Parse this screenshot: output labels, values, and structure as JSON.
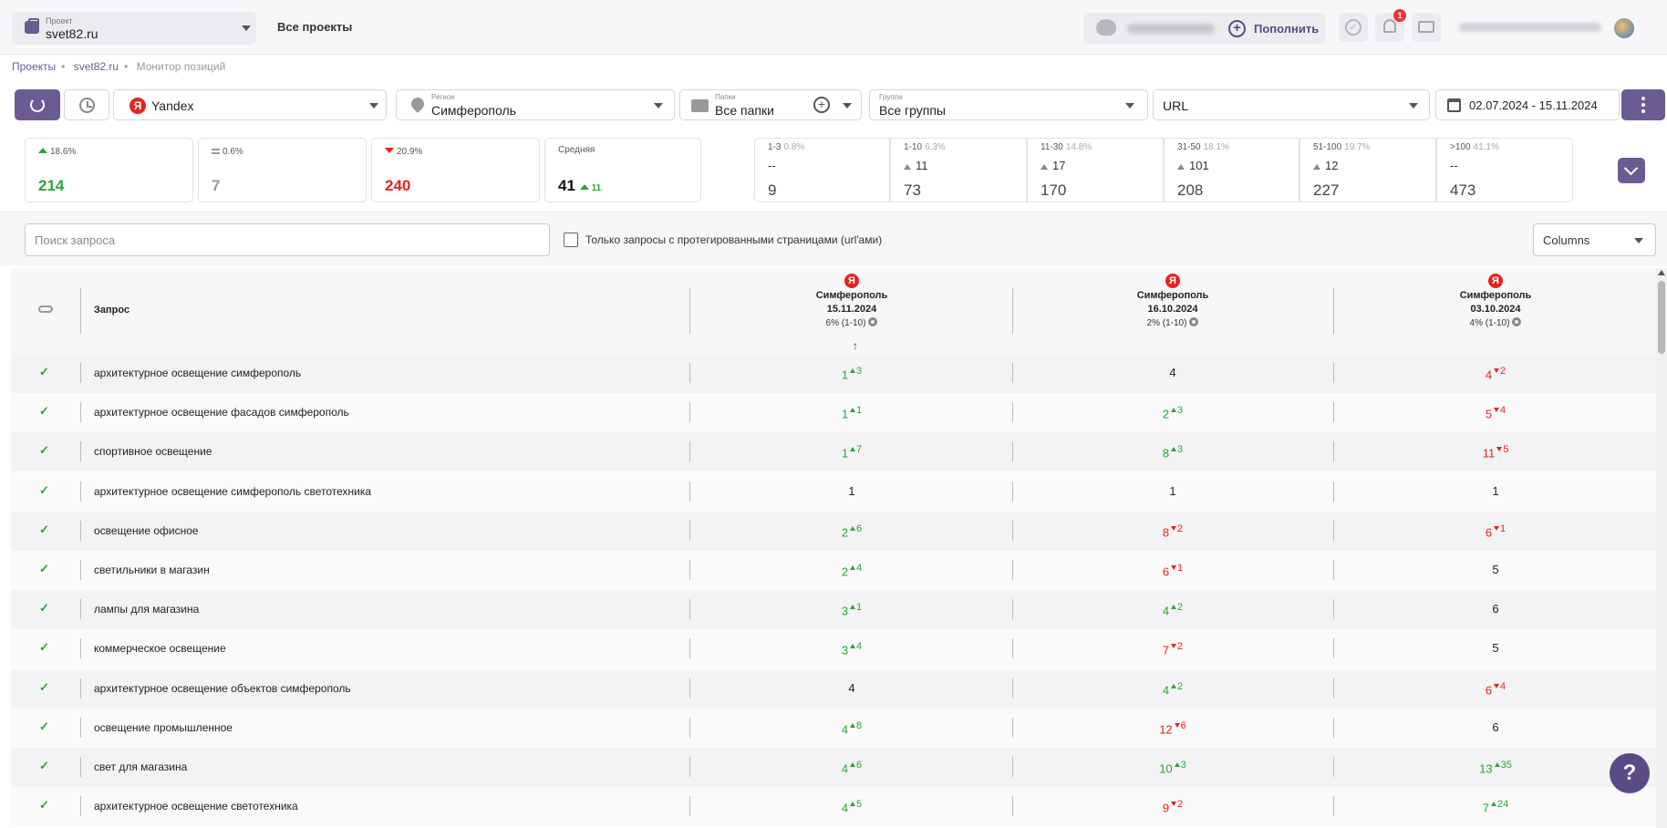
{
  "header": {
    "project_label": "Проект",
    "project_name": "svet82.ru",
    "all_projects": "Все проекты",
    "topup_label": "Пополнить",
    "notifications_count": "1"
  },
  "breadcrumb": [
    "Проекты",
    "svet82.ru",
    "Монитор позиций"
  ],
  "filters": {
    "search_engine": "Yandex",
    "region_label": "Регион",
    "region_value": "Симферополь",
    "folders_label": "Папки",
    "folders_value": "Все папки",
    "group_label": "Группа",
    "group_value": "Все группы",
    "url_value": "URL",
    "date_range": "02.07.2024 - 15.11.2024"
  },
  "stats": {
    "up": {
      "pct": "18.6%",
      "value": "214"
    },
    "same": {
      "pct": "0.6%",
      "value": "7"
    },
    "down": {
      "pct": "20.9%",
      "value": "240"
    },
    "avg": {
      "label": "Средняя",
      "value": "41",
      "delta": "11"
    }
  },
  "ranges": [
    {
      "label": "1-3",
      "pct": "0.8%",
      "change": "--",
      "total": "9"
    },
    {
      "label": "1-10",
      "pct": "6.3%",
      "change": "11",
      "total": "73"
    },
    {
      "label": "11-30",
      "pct": "14.8%",
      "change": "17",
      "total": "170"
    },
    {
      "label": "31-50",
      "pct": "18.1%",
      "change": "101",
      "total": "208"
    },
    {
      "label": "51-100",
      "pct": "19.7%",
      "change": "12",
      "total": "227"
    },
    {
      "label": ">100",
      "pct": "41.1%",
      "change": "--",
      "total": "473"
    }
  ],
  "search": {
    "placeholder": "Поиск запроса",
    "tagged_only_label": "Только запросы с протегированными страницами (url'ами)",
    "columns_label": "Columns"
  },
  "table": {
    "query_header": "Запрос",
    "sort_icon": "↑",
    "date_columns": [
      {
        "engine_icon": "Я",
        "city": "Симферополь",
        "date": "15.11.2024",
        "top": "6% (1-10)"
      },
      {
        "engine_icon": "Я",
        "city": "Симферополь",
        "date": "16.10.2024",
        "top": "2% (1-10)"
      },
      {
        "engine_icon": "Я",
        "city": "Симферополь",
        "date": "03.10.2024",
        "top": "4% (1-10)"
      }
    ],
    "check_glyph": "✓",
    "rows": [
      {
        "query": "архитектурное освещение симферополь",
        "cells": [
          {
            "v": "1",
            "d": "3",
            "c": "green"
          },
          {
            "v": "4",
            "d": "",
            "c": "black"
          },
          {
            "v": "4",
            "d": "2",
            "c": "red"
          }
        ]
      },
      {
        "query": "архитектурное освещение фасадов симферополь",
        "cells": [
          {
            "v": "1",
            "d": "1",
            "c": "green"
          },
          {
            "v": "2",
            "d": "3",
            "c": "green"
          },
          {
            "v": "5",
            "d": "4",
            "c": "red"
          }
        ]
      },
      {
        "query": "спортивное освещение",
        "cells": [
          {
            "v": "1",
            "d": "7",
            "c": "green"
          },
          {
            "v": "8",
            "d": "3",
            "c": "green"
          },
          {
            "v": "11",
            "d": "5",
            "c": "red"
          }
        ]
      },
      {
        "query": "архитектурное освещение симферополь светотехника",
        "cells": [
          {
            "v": "1",
            "d": "",
            "c": "black"
          },
          {
            "v": "1",
            "d": "",
            "c": "black"
          },
          {
            "v": "1",
            "d": "",
            "c": "black"
          }
        ]
      },
      {
        "query": "освещение офисное",
        "cells": [
          {
            "v": "2",
            "d": "6",
            "c": "green"
          },
          {
            "v": "8",
            "d": "2",
            "c": "red"
          },
          {
            "v": "6",
            "d": "1",
            "c": "red"
          }
        ]
      },
      {
        "query": "светильники в магазин",
        "cells": [
          {
            "v": "2",
            "d": "4",
            "c": "green"
          },
          {
            "v": "6",
            "d": "1",
            "c": "red"
          },
          {
            "v": "5",
            "d": "",
            "c": "black"
          }
        ]
      },
      {
        "query": "лампы для магазина",
        "cells": [
          {
            "v": "3",
            "d": "1",
            "c": "green"
          },
          {
            "v": "4",
            "d": "2",
            "c": "green"
          },
          {
            "v": "6",
            "d": "",
            "c": "black"
          }
        ]
      },
      {
        "query": "коммерческое освещение",
        "cells": [
          {
            "v": "3",
            "d": "4",
            "c": "green"
          },
          {
            "v": "7",
            "d": "2",
            "c": "red"
          },
          {
            "v": "5",
            "d": "",
            "c": "black"
          }
        ]
      },
      {
        "query": "архитектурное освещение объектов симферополь",
        "cells": [
          {
            "v": "4",
            "d": "",
            "c": "black"
          },
          {
            "v": "4",
            "d": "2",
            "c": "green"
          },
          {
            "v": "6",
            "d": "4",
            "c": "red"
          }
        ]
      },
      {
        "query": "освещение промышленное",
        "cells": [
          {
            "v": "4",
            "d": "8",
            "c": "green"
          },
          {
            "v": "12",
            "d": "6",
            "c": "red"
          },
          {
            "v": "6",
            "d": "",
            "c": "black"
          }
        ]
      },
      {
        "query": "свет для магазина",
        "cells": [
          {
            "v": "4",
            "d": "6",
            "c": "green"
          },
          {
            "v": "10",
            "d": "3",
            "c": "green"
          },
          {
            "v": "13",
            "d": "35",
            "c": "green"
          }
        ]
      },
      {
        "query": "архитектурное освещение светотехника",
        "cells": [
          {
            "v": "4",
            "d": "5",
            "c": "green"
          },
          {
            "v": "9",
            "d": "2",
            "c": "red"
          },
          {
            "v": "7",
            "d": "24",
            "c": "green"
          }
        ]
      }
    ]
  },
  "help": "?"
}
